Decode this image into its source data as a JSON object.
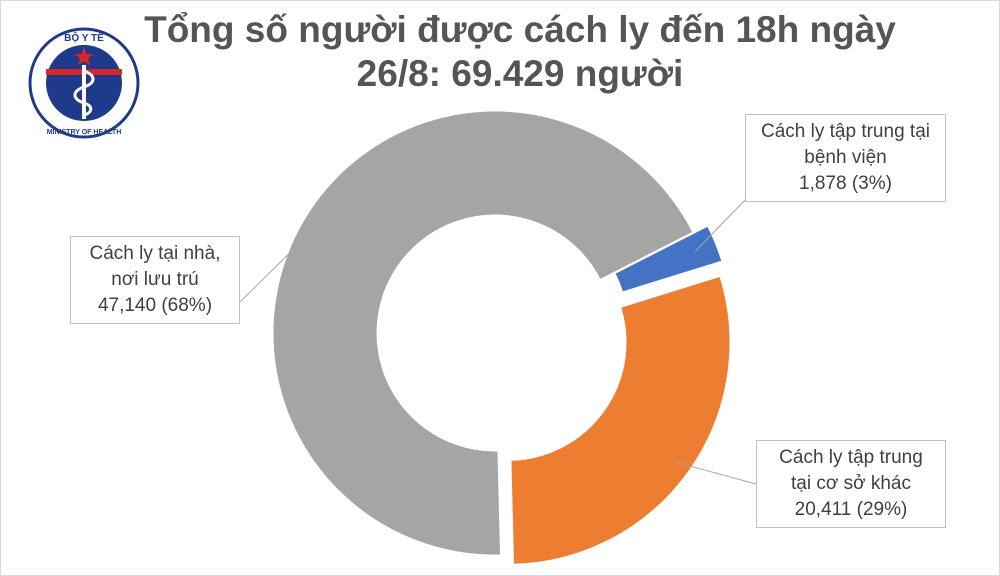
{
  "logo": {
    "top_text": "BỘ Y TẾ",
    "bottom_text": "MINISTRY OF HEALTH"
  },
  "chart_data": {
    "type": "pie",
    "style": "donut",
    "title": [
      "Tổng số người được cách ly đến 18h ngày",
      "26/8: 69.429 người"
    ],
    "slices": [
      {
        "label": "Cách ly tập trung tại bệnh viện",
        "value": 1878,
        "percent": 3,
        "color": "#4472c4",
        "exploded": true,
        "label_lines": [
          "Cách ly tập trung tại",
          "bệnh viện",
          "1,878 (3%)"
        ]
      },
      {
        "label": "Cách ly tập trung tại cơ sở khác",
        "value": 20411,
        "percent": 29,
        "color": "#ed7d31",
        "exploded": true,
        "label_lines": [
          "Cách ly tập trung",
          "tại cơ sở khác",
          "20,411 (29%)"
        ]
      },
      {
        "label": "Cách ly tại nhà, nơi lưu trú",
        "value": 47140,
        "percent": 68,
        "color": "#a5a5a5",
        "exploded": false,
        "label_lines": [
          "Cách ly tại nhà,",
          "nơi lưu trú",
          "47,140 (68%)"
        ]
      }
    ],
    "legend": "none",
    "labels": "callouts"
  }
}
